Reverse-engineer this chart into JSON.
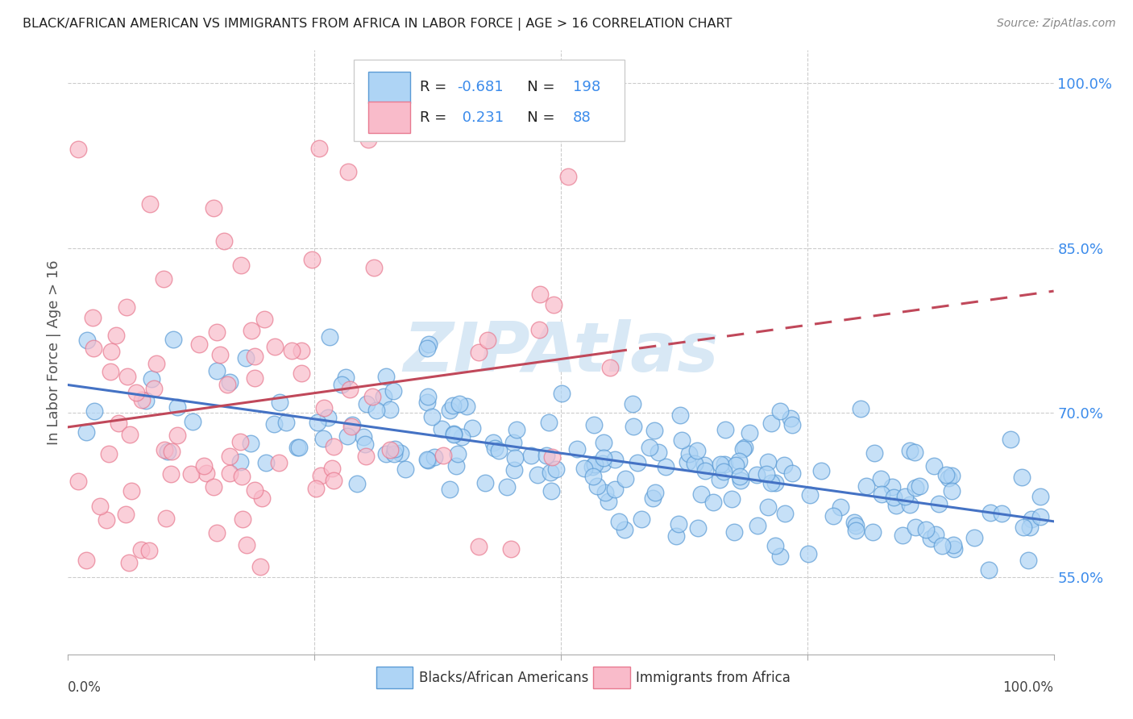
{
  "title": "BLACK/AFRICAN AMERICAN VS IMMIGRANTS FROM AFRICA IN LABOR FORCE | AGE > 16 CORRELATION CHART",
  "source": "Source: ZipAtlas.com",
  "ylabel": "In Labor Force | Age > 16",
  "right_yticks": [
    55.0,
    70.0,
    85.0,
    100.0
  ],
  "blue_R": -0.681,
  "blue_N": 198,
  "pink_R": 0.231,
  "pink_N": 88,
  "blue_color": "#AED4F5",
  "pink_color": "#F9BBCA",
  "blue_edge_color": "#5B9BD5",
  "pink_edge_color": "#E87A90",
  "blue_line_color": "#4472C4",
  "pink_line_color": "#C0485A",
  "watermark_color": "#D8E8F5",
  "legend_label_blue": "Blacks/African Americans",
  "legend_label_pink": "Immigrants from Africa",
  "background_color": "#ffffff",
  "grid_color": "#cccccc",
  "title_color": "#222222",
  "axis_label_color": "#555555",
  "right_tick_color": "#3B8BEB",
  "source_color": "#888888",
  "seed_blue": 42,
  "seed_pink": 77,
  "xlim": [
    0,
    100
  ],
  "ylim": [
    48,
    103
  ]
}
